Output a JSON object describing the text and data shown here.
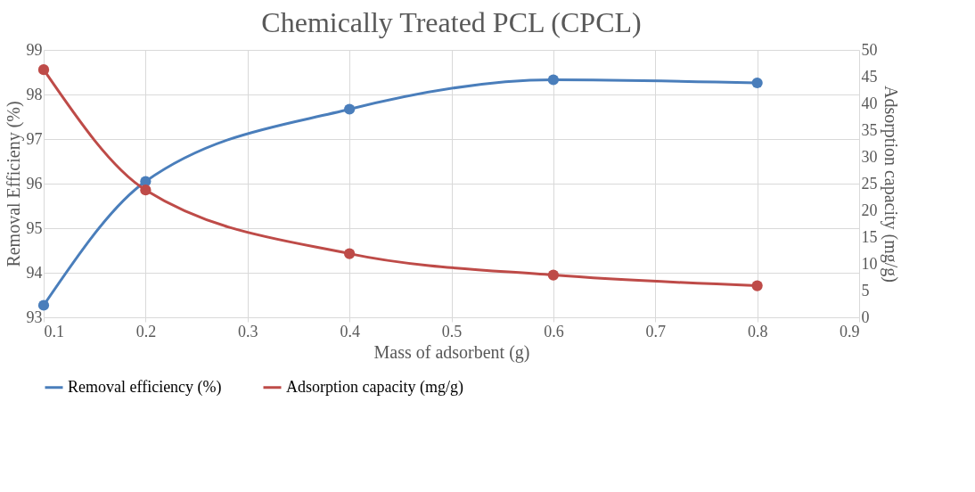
{
  "chart_data": {
    "type": "line",
    "title": "Chemically Treated PCL (CPCL)",
    "xlabel": "Mass of adsorbent (g)",
    "ylabel": "Removal Efficieny (%)",
    "y2label": "Adsorption capacity (mg/g)",
    "x": [
      0.1,
      0.2,
      0.4,
      0.6,
      0.8
    ],
    "xlim": [
      0.1,
      0.9
    ],
    "xticks": [
      0.1,
      0.2,
      0.3,
      0.4,
      0.5,
      0.6,
      0.7,
      0.8,
      0.9
    ],
    "ylim": [
      93,
      99
    ],
    "yticks": [
      93,
      94,
      95,
      96,
      97,
      98,
      99
    ],
    "y2lim": [
      0,
      50
    ],
    "y2ticks": [
      0,
      5,
      10,
      15,
      20,
      25,
      30,
      35,
      40,
      45,
      50
    ],
    "series": [
      {
        "name": "Removal efficiency (%)",
        "color": "#4a7ebb",
        "values": [
          93.27,
          96.05,
          97.67,
          98.33,
          98.26
        ]
      },
      {
        "name": "Adsorption capacity (mg/g)",
        "color": "#be4b48",
        "values": [
          46.3,
          23.8,
          11.9,
          7.9,
          5.9
        ],
        "axis": "y2"
      }
    ],
    "grid": true,
    "legend": "bottom",
    "marker": "circle",
    "line_style": "solid"
  }
}
